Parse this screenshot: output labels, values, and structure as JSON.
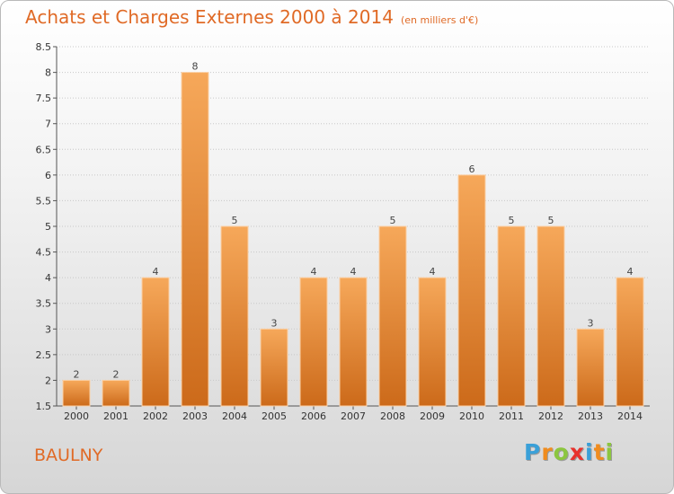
{
  "header": {
    "title": "Achats et Charges Externes 2000 à 2014",
    "unit": "(en milliers d'€)"
  },
  "footer": {
    "city": "BAULNY",
    "logo_letters": [
      {
        "char": "P",
        "color": "#3aa0d8"
      },
      {
        "char": "r",
        "color": "#f08c1e"
      },
      {
        "char": "o",
        "color": "#8cc63f"
      },
      {
        "char": "x",
        "color": "#e8322c"
      },
      {
        "char": "i",
        "color": "#3aa0d8"
      },
      {
        "char": "t",
        "color": "#f08c1e"
      },
      {
        "char": "i",
        "color": "#8cc63f"
      }
    ]
  },
  "chart_data": {
    "type": "bar",
    "title": "Achats et Charges Externes 2000 à 2014",
    "subtitle": "(en milliers d'€)",
    "categories": [
      "2000",
      "2001",
      "2002",
      "2003",
      "2004",
      "2005",
      "2006",
      "2007",
      "2008",
      "2009",
      "2010",
      "2011",
      "2012",
      "2013",
      "2014"
    ],
    "values": [
      2,
      2,
      4,
      8,
      5,
      3,
      4,
      4,
      5,
      4,
      6,
      5,
      5,
      3,
      4
    ],
    "ylim": [
      1.5,
      8.5
    ],
    "yticks": [
      1.5,
      2,
      2.5,
      3,
      3.5,
      4,
      4.5,
      5,
      5.5,
      6,
      6.5,
      7,
      7.5,
      8,
      8.5
    ],
    "grid": true,
    "bar_color_top": "#f6a85a",
    "bar_color_bottom": "#cc6a1a",
    "grid_color": "#c8c8c8"
  }
}
